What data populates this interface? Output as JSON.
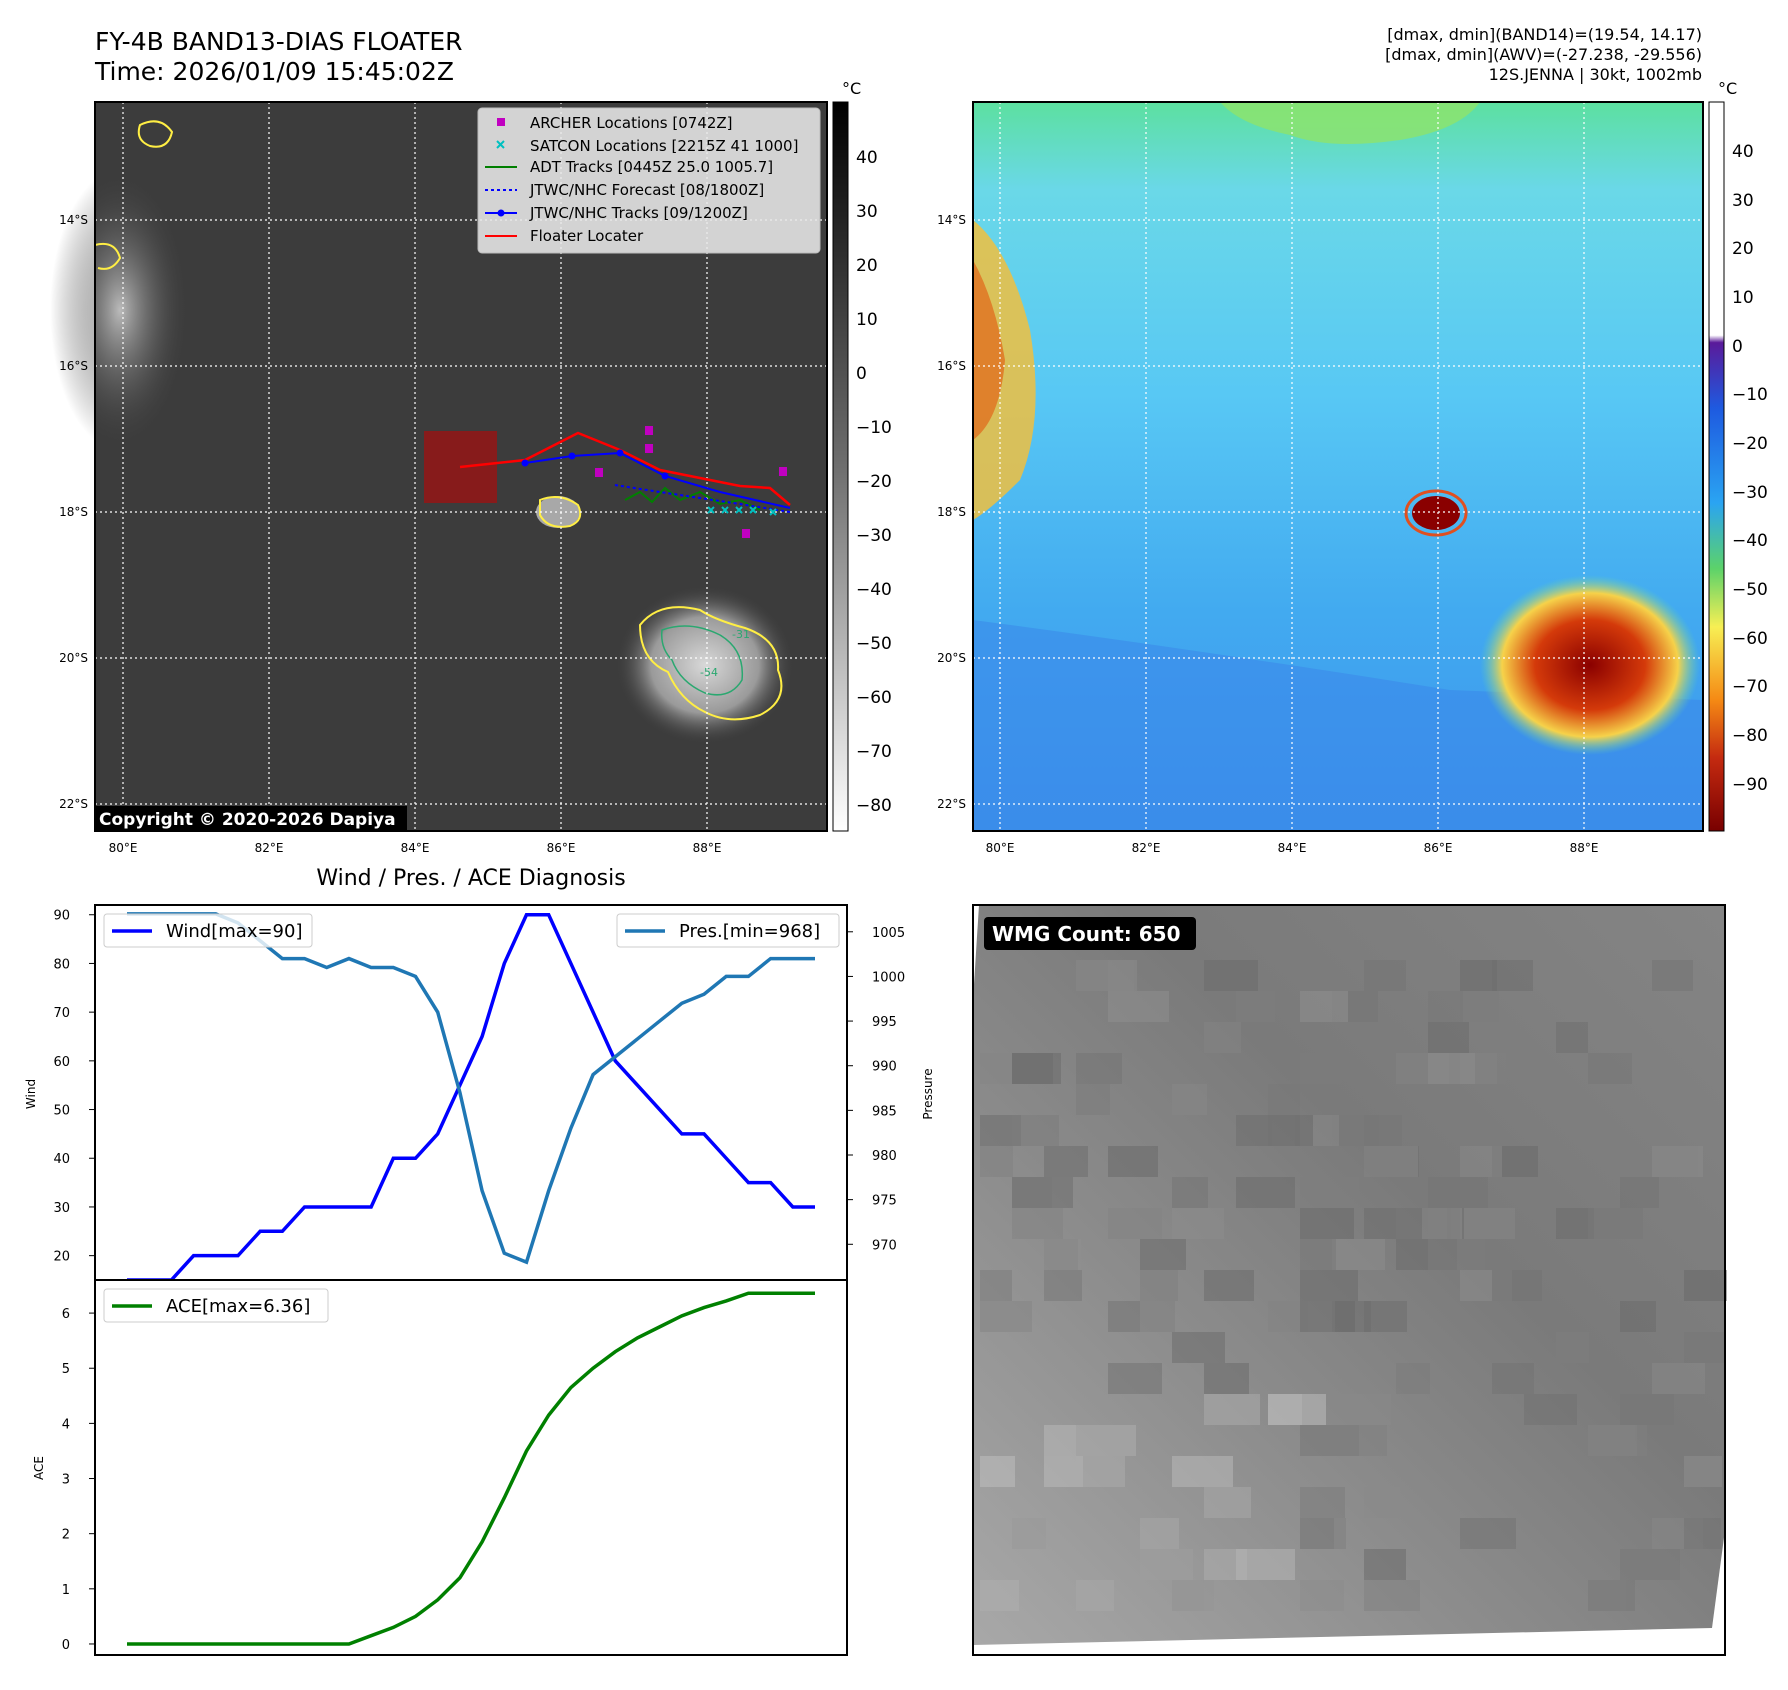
{
  "header": {
    "title_line1": "FY-4B BAND13-DIAS FLOATER",
    "title_line2": "Time: 2026/01/09 15:45:02Z",
    "info_line1": "[dmax, dmin](BAND14)=(19.54, 14.17)",
    "info_line2": "[dmax, dmin](AWV)=(-27.238, -29.556)",
    "info_line3": "12S.JENNA | 30kt, 1002mb"
  },
  "map_axes": {
    "lat_labels": [
      "14°S",
      "16°S",
      "18°S",
      "20°S",
      "22°S"
    ],
    "lon_labels": [
      "80°E",
      "82°E",
      "84°E",
      "86°E",
      "88°E"
    ]
  },
  "ir_panel": {
    "copyright": "Copyright © 2020-2026 Dapiya",
    "colorbar_unit": "°C",
    "colorbar_ticks": [
      "40",
      "30",
      "20",
      "10",
      "0",
      "−10",
      "−20",
      "−30",
      "−40",
      "−50",
      "−60",
      "−70",
      "−80"
    ],
    "contour_labels": [
      "-31",
      "-54"
    ],
    "legend": [
      {
        "label": "ARCHER Locations [0742Z]",
        "color": "#c000c0",
        "marker": "square"
      },
      {
        "label": "SATCON Locations [2215Z 41 1000]",
        "color": "#00c0c0",
        "marker": "x"
      },
      {
        "label": "ADT Tracks [0445Z 25.0 1005.7]",
        "color": "#007f00",
        "marker": "line"
      },
      {
        "label": "JTWC/NHC Forecast [08/1800Z]",
        "color": "#0000ff",
        "marker": "dotted"
      },
      {
        "label": "JTWC/NHC Tracks [09/1200Z]",
        "color": "#0000ff",
        "marker": "line-dot"
      },
      {
        "label": "Floater Locater",
        "color": "#ff0000",
        "marker": "line"
      }
    ]
  },
  "awv_panel": {
    "colorbar_unit": "°C",
    "colorbar_ticks": [
      "40",
      "30",
      "20",
      "10",
      "0",
      "−10",
      "−20",
      "−30",
      "−40",
      "−50",
      "−60",
      "−70",
      "−80",
      "−90"
    ]
  },
  "wmg_panel": {
    "badge": "WMG Count: 650"
  },
  "chart_data": [
    {
      "type": "line",
      "title": "Wind / Pres. / ACE Diagnosis",
      "ylabel": "Wind",
      "ylabel2": "Pressure",
      "ylim": [
        15,
        92
      ],
      "ylim2": [
        966,
        1008
      ],
      "yticks": [
        20,
        30,
        40,
        50,
        60,
        70,
        80,
        90
      ],
      "yticks2": [
        970,
        975,
        980,
        985,
        990,
        995,
        1000,
        1005
      ],
      "x": [
        0,
        1,
        2,
        3,
        4,
        5,
        6,
        7,
        8,
        9,
        10,
        11,
        12,
        13,
        14,
        15,
        16,
        17,
        18,
        19,
        20,
        21,
        22,
        23,
        24,
        25,
        26,
        27,
        28,
        29,
        30,
        31
      ],
      "series": [
        {
          "name": "Wind[max=90]",
          "color": "#0000ff",
          "values": [
            15,
            15,
            15,
            20,
            20,
            20,
            25,
            25,
            30,
            30,
            30,
            30,
            40,
            40,
            45,
            55,
            65,
            80,
            90,
            90,
            80,
            70,
            60,
            55,
            50,
            45,
            45,
            40,
            35,
            35,
            30,
            30
          ]
        },
        {
          "name": "Pres.[min=968]",
          "color": "#1f77b4",
          "values": [
            1007,
            1007,
            1007,
            1007,
            1007,
            1006,
            1004,
            1002,
            1002,
            1001,
            1002,
            1001,
            1001,
            1000,
            996,
            987,
            976,
            969,
            968,
            976,
            983,
            989,
            991,
            993,
            995,
            997,
            998,
            1000,
            1000,
            1002,
            1002,
            1002
          ]
        }
      ]
    },
    {
      "type": "line",
      "ylabel": "ACE",
      "ylim": [
        -0.2,
        6.6
      ],
      "yticks": [
        0,
        1,
        2,
        3,
        4,
        5,
        6
      ],
      "x": [
        0,
        1,
        2,
        3,
        4,
        5,
        6,
        7,
        8,
        9,
        10,
        11,
        12,
        13,
        14,
        15,
        16,
        17,
        18,
        19,
        20,
        21,
        22,
        23,
        24,
        25,
        26,
        27,
        28,
        29,
        30,
        31
      ],
      "series": [
        {
          "name": "ACE[max=6.36]",
          "color": "#008000",
          "values": [
            0,
            0,
            0,
            0,
            0,
            0,
            0,
            0,
            0,
            0,
            0,
            0.15,
            0.3,
            0.5,
            0.8,
            1.2,
            1.85,
            2.65,
            3.5,
            4.15,
            4.65,
            5.0,
            5.3,
            5.55,
            5.75,
            5.95,
            6.1,
            6.22,
            6.36,
            6.36,
            6.36,
            6.36
          ]
        }
      ]
    }
  ]
}
